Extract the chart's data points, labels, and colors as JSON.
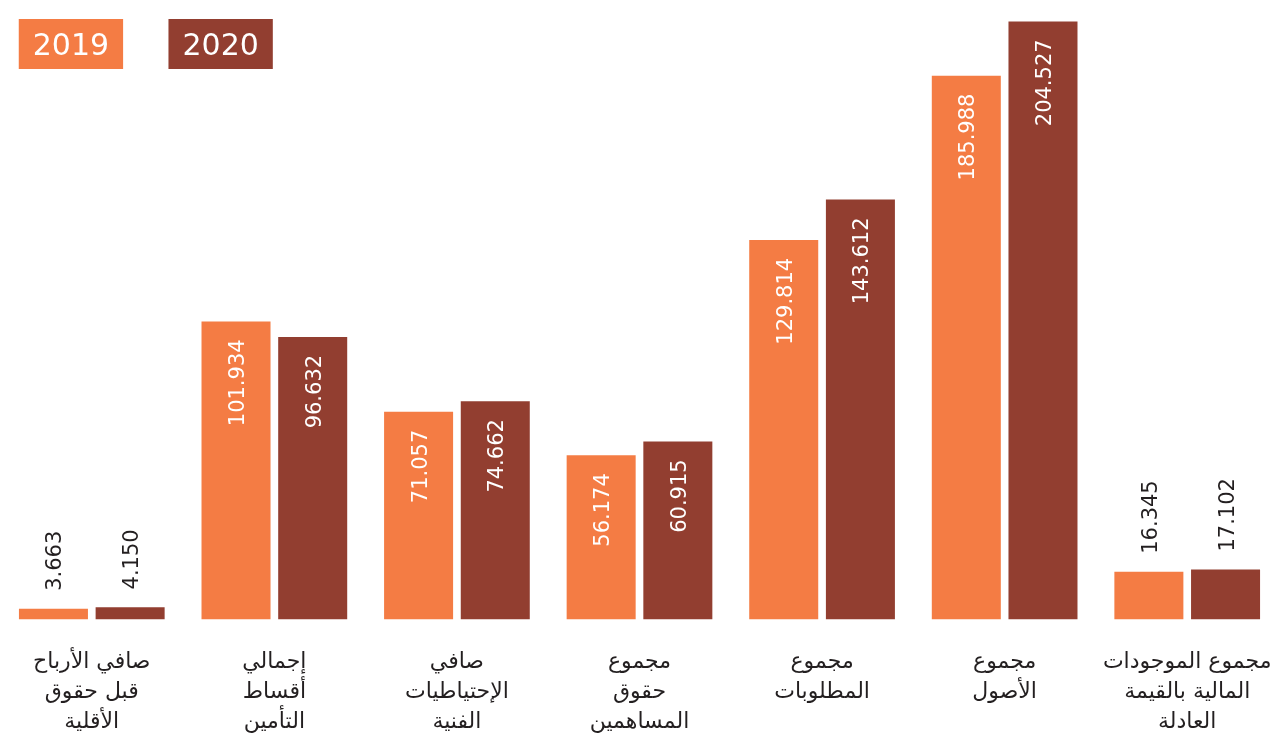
{
  "chart_data": {
    "type": "bar",
    "categories": [
      "صافي الأرباح\nقبل حقوق\nالأقلية",
      "إجمالي\nأقساط\nالتأمين",
      "صافي\nالإحتياطيات\nالفنية",
      "مجموع\nحقوق\nالمساهمين",
      "مجموع\nالمطلوبات",
      "مجموع\nالأصول",
      "مجموع الموجودات\nالمالية بالقيمة\nالعادلة"
    ],
    "series": [
      {
        "name": "2019",
        "color": "#f47c44",
        "values": [
          3.663,
          101.934,
          71.057,
          56.174,
          129.814,
          185.988,
          16.345
        ],
        "value_labels": [
          "3.663",
          "101.934",
          "71.057",
          "56.174",
          "129.814",
          "185.988",
          "16.345"
        ]
      },
      {
        "name": "2020",
        "color": "#923e30",
        "values": [
          4.15,
          96.632,
          74.662,
          60.915,
          143.612,
          204.527,
          17.102
        ],
        "value_labels": [
          "4.150",
          "96.632",
          "74.662",
          "60.915",
          "143.612",
          "204.527",
          "17.102"
        ]
      }
    ],
    "legend": "top left",
    "grid": false
  }
}
